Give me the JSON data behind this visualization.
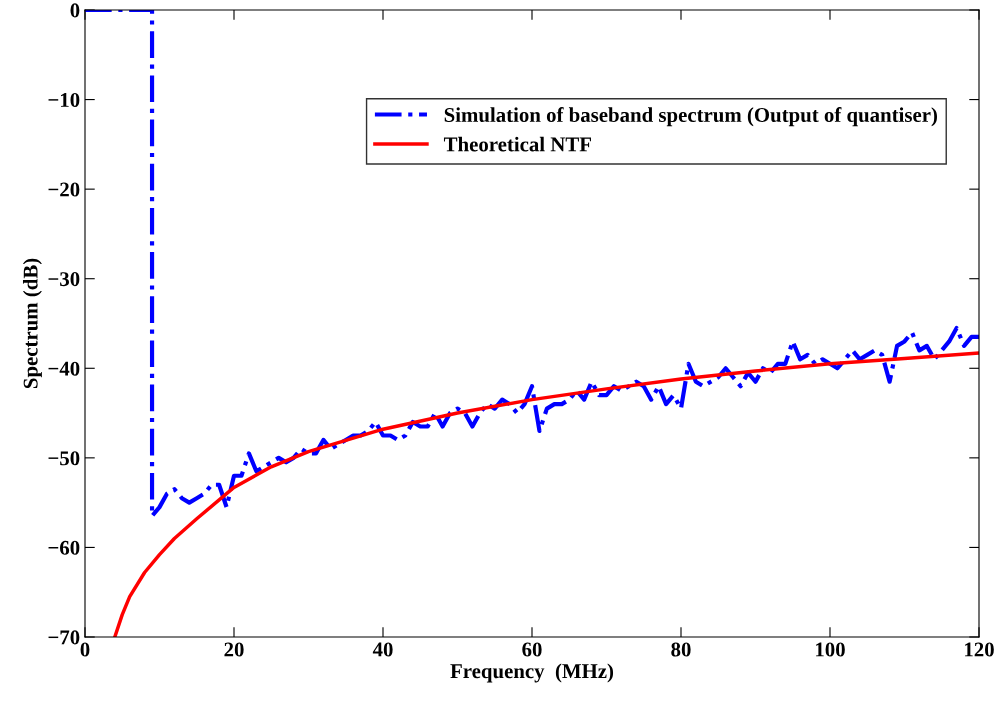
{
  "chart_data": {
    "type": "line",
    "xlabel": "Frequency  (MHz)",
    "ylabel": "Spectrum (dB)",
    "xlim": [
      0,
      120
    ],
    "ylim": [
      -70,
      0
    ],
    "xticks": [
      0,
      20,
      40,
      60,
      80,
      100,
      120
    ],
    "yticks": [
      -70,
      -60,
      -50,
      -40,
      -30,
      -20,
      -10,
      0
    ],
    "grid": false,
    "legend": "top right",
    "marker": "none",
    "series": [
      {
        "name": "Simulation of baseband spectrum (Output of quantiser)",
        "color": "#0000ff",
        "line_style": "dashdot",
        "x": [
          0,
          9,
          9,
          10,
          11,
          12,
          13,
          14,
          15,
          16,
          17,
          18,
          19,
          20,
          21,
          22,
          23,
          24,
          25,
          26,
          27,
          28,
          29,
          30,
          31,
          32,
          33,
          34,
          35,
          36,
          37,
          38,
          39,
          40,
          41,
          42,
          43,
          44,
          45,
          46,
          47,
          48,
          49,
          50,
          51,
          52,
          53,
          54,
          55,
          56,
          57,
          58,
          59,
          60,
          61,
          62,
          63,
          64,
          65,
          66,
          67,
          68,
          69,
          70,
          71,
          72,
          73,
          74,
          75,
          76,
          77,
          78,
          79,
          80,
          81,
          82,
          83,
          84,
          85,
          86,
          87,
          88,
          89,
          90,
          91,
          92,
          93,
          94,
          95,
          96,
          97,
          98,
          99,
          100,
          101,
          102,
          103,
          104,
          105,
          106,
          107,
          108,
          109,
          110,
          111,
          112,
          113,
          114,
          115,
          116,
          117,
          118,
          119,
          120
        ],
        "values": [
          0,
          0,
          -56.5,
          -55.5,
          -54,
          -53.5,
          -54.5,
          -55,
          -54.5,
          -54,
          -53,
          -53,
          -55.5,
          -52,
          -52,
          -49.5,
          -51.5,
          -51,
          -50.5,
          -50,
          -50.5,
          -50,
          -49,
          -49.5,
          -49.5,
          -48,
          -49,
          -48.5,
          -48,
          -47.5,
          -47.5,
          -47,
          -46,
          -47.5,
          -47.5,
          -48,
          -47.5,
          -46,
          -46.5,
          -46.5,
          -45,
          -46.5,
          -45,
          -44.5,
          -45,
          -46.5,
          -45,
          -44,
          -44.5,
          -43.5,
          -44,
          -45,
          -44,
          -42,
          -47,
          -44.5,
          -44,
          -44,
          -43.5,
          -42.5,
          -43.5,
          -41.5,
          -43,
          -43,
          -42,
          -42.5,
          -42,
          -41.5,
          -42,
          -43.5,
          -42,
          -44,
          -43,
          -44.5,
          -39.5,
          -41.5,
          -42,
          -41.5,
          -41,
          -40,
          -41,
          -42,
          -40.5,
          -41.5,
          -40,
          -40.5,
          -39.5,
          -39.5,
          -37,
          -39,
          -38.5,
          -39.5,
          -39,
          -39.5,
          -40,
          -39,
          -38,
          -39,
          -38.5,
          -38,
          -38.5,
          -41.5,
          -37.5,
          -37,
          -36,
          -38,
          -37.5,
          -39,
          -38,
          -37,
          -35.5,
          -37.5,
          -36.5,
          -36.5
        ]
      },
      {
        "name": "Theoretical NTF",
        "color": "#ff0000",
        "line_style": "solid",
        "x": [
          4,
          5,
          6,
          8,
          10,
          12,
          15,
          20,
          25,
          30,
          40,
          50,
          60,
          70,
          80,
          90,
          100,
          110,
          120
        ],
        "values": [
          -70,
          -67.5,
          -65.5,
          -62.8,
          -60.8,
          -59,
          -56.8,
          -53.3,
          -51,
          -49.3,
          -46.8,
          -45,
          -43.5,
          -42.3,
          -41.2,
          -40.3,
          -39.5,
          -38.9,
          -38.3
        ]
      }
    ]
  }
}
